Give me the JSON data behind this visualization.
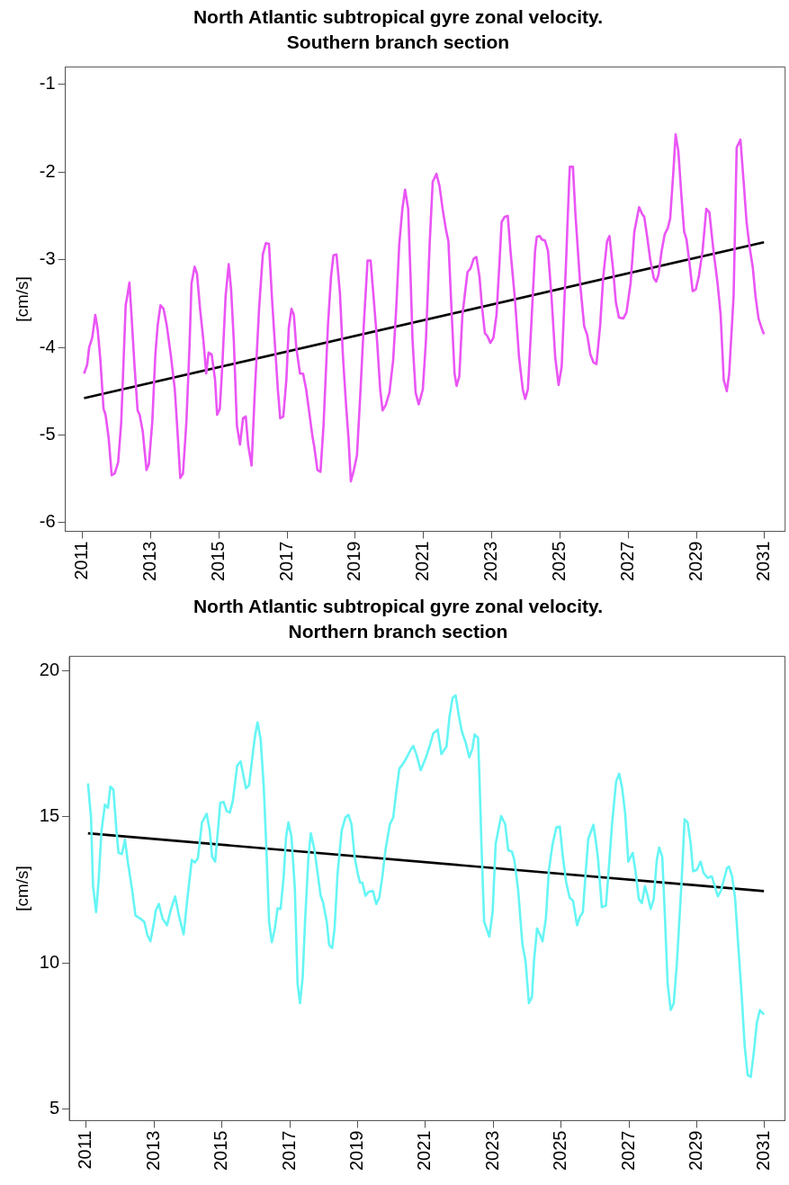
{
  "chart_data": [
    {
      "type": "line",
      "title": "North Atlantic subtropical gyre zonal velocity.",
      "subtitle": "Southern branch section",
      "ylabel": "[cm/s]",
      "xlim": [
        2010.5,
        2031.6
      ],
      "xticks": [
        2011,
        2013,
        2015,
        2017,
        2019,
        2021,
        2023,
        2025,
        2027,
        2029,
        2031
      ],
      "ylim": [
        -6.1,
        -0.8
      ],
      "yticks": [
        -6,
        -5,
        -4,
        -3,
        -2,
        -1
      ],
      "grid": false,
      "legend": false,
      "marker": "none",
      "line_style": "solid",
      "series": [
        {
          "color": "#ea55f5",
          "x": [
            2011.05,
            2011.14,
            2011.2,
            2011.29,
            2011.38,
            2011.45,
            2011.53,
            2011.62,
            2011.68,
            2011.77,
            2011.86,
            2011.95,
            2012.05,
            2012.14,
            2012.27,
            2012.32,
            2012.38,
            2012.44,
            2012.53,
            2012.62,
            2012.68,
            2012.77,
            2012.88,
            2012.95,
            2013.05,
            2013.14,
            2013.21,
            2013.29,
            2013.38,
            2013.47,
            2013.59,
            2013.71,
            2013.8,
            2013.87,
            2013.95,
            2014.05,
            2014.14,
            2014.2,
            2014.29,
            2014.36,
            2014.45,
            2014.55,
            2014.63,
            2014.7,
            2014.79,
            2014.89,
            2014.95,
            2015.03,
            2015.11,
            2015.2,
            2015.29,
            2015.36,
            2015.44,
            2015.53,
            2015.62,
            2015.71,
            2015.79,
            2015.86,
            2015.96,
            2016.05,
            2016.18,
            2016.29,
            2016.38,
            2016.47,
            2016.56,
            2016.65,
            2016.73,
            2016.8,
            2016.89,
            2016.98,
            2017.05,
            2017.13,
            2017.2,
            2017.27,
            2017.38,
            2017.47,
            2017.56,
            2017.65,
            2017.75,
            2017.8,
            2017.89,
            2017.98,
            2018.07,
            2018.2,
            2018.29,
            2018.36,
            2018.45,
            2018.55,
            2018.64,
            2018.73,
            2018.8,
            2018.87,
            2018.96,
            2019.05,
            2019.14,
            2019.25,
            2019.36,
            2019.45,
            2019.55,
            2019.64,
            2019.73,
            2019.8,
            2019.89,
            2020.0,
            2020.11,
            2020.2,
            2020.29,
            2020.38,
            2020.46,
            2020.55,
            2020.62,
            2020.68,
            2020.77,
            2020.86,
            2020.98,
            2021.07,
            2021.18,
            2021.27,
            2021.38,
            2021.47,
            2021.56,
            2021.65,
            2021.73,
            2021.82,
            2021.91,
            2021.97,
            2022.05,
            2022.14,
            2022.29,
            2022.38,
            2022.47,
            2022.55,
            2022.64,
            2022.71,
            2022.8,
            2022.87,
            2022.96,
            2023.05,
            2023.14,
            2023.23,
            2023.29,
            2023.38,
            2023.47,
            2023.55,
            2023.68,
            2023.8,
            2023.91,
            2023.98,
            2024.06,
            2024.16,
            2024.27,
            2024.32,
            2024.41,
            2024.47,
            2024.56,
            2024.65,
            2024.75,
            2024.86,
            2024.96,
            2025.05,
            2025.18,
            2025.27,
            2025.29,
            2025.38,
            2025.45,
            2025.59,
            2025.71,
            2025.8,
            2025.89,
            2025.98,
            2026.07,
            2026.18,
            2026.27,
            2026.38,
            2026.45,
            2026.55,
            2026.64,
            2026.73,
            2026.86,
            2026.95,
            2027.07,
            2027.18,
            2027.32,
            2027.41,
            2027.47,
            2027.56,
            2027.65,
            2027.75,
            2027.82,
            2027.89,
            2027.98,
            2028.07,
            2028.16,
            2028.23,
            2028.32,
            2028.39,
            2028.47,
            2028.56,
            2028.64,
            2028.71,
            2028.8,
            2028.89,
            2028.98,
            2029.07,
            2029.18,
            2029.29,
            2029.38,
            2029.5,
            2029.62,
            2029.71,
            2029.8,
            2029.89,
            2029.96,
            2030.09,
            2030.18,
            2030.29,
            2030.38,
            2030.47,
            2030.56,
            2030.65,
            2030.73,
            2030.82,
            2030.91,
            2030.98
          ],
          "values": [
            -4.3,
            -4.2,
            -4.0,
            -3.89,
            -3.63,
            -3.8,
            -4.15,
            -4.7,
            -4.77,
            -5.03,
            -5.46,
            -5.44,
            -5.31,
            -4.85,
            -3.52,
            -3.41,
            -3.26,
            -3.63,
            -4.22,
            -4.72,
            -4.77,
            -4.96,
            -5.4,
            -5.33,
            -4.85,
            -4.08,
            -3.74,
            -3.52,
            -3.56,
            -3.74,
            -4.08,
            -4.48,
            -5.03,
            -5.49,
            -5.44,
            -4.85,
            -4.0,
            -3.27,
            -3.08,
            -3.16,
            -3.56,
            -3.93,
            -4.3,
            -4.06,
            -4.08,
            -4.37,
            -4.77,
            -4.7,
            -4.15,
            -3.41,
            -3.05,
            -3.34,
            -3.93,
            -4.89,
            -5.11,
            -4.81,
            -4.79,
            -5.11,
            -5.35,
            -4.55,
            -3.56,
            -2.94,
            -2.81,
            -2.82,
            -3.45,
            -4.0,
            -4.48,
            -4.81,
            -4.79,
            -4.37,
            -3.78,
            -3.56,
            -3.63,
            -4.0,
            -4.3,
            -4.3,
            -4.48,
            -4.74,
            -5.03,
            -5.14,
            -5.4,
            -5.42,
            -4.89,
            -3.74,
            -3.19,
            -2.95,
            -2.94,
            -3.38,
            -4.11,
            -4.66,
            -5.03,
            -5.53,
            -5.4,
            -5.23,
            -4.59,
            -3.74,
            -3.01,
            -3.01,
            -3.49,
            -3.93,
            -4.48,
            -4.72,
            -4.66,
            -4.52,
            -4.15,
            -3.56,
            -2.82,
            -2.42,
            -2.2,
            -2.42,
            -3.19,
            -3.93,
            -4.52,
            -4.65,
            -4.48,
            -3.93,
            -2.82,
            -2.11,
            -2.02,
            -2.16,
            -2.42,
            -2.64,
            -2.79,
            -3.56,
            -4.3,
            -4.44,
            -4.33,
            -3.63,
            -3.14,
            -3.1,
            -2.99,
            -2.97,
            -3.19,
            -3.52,
            -3.84,
            -3.87,
            -3.95,
            -3.89,
            -3.63,
            -3.01,
            -2.57,
            -2.51,
            -2.5,
            -2.9,
            -3.45,
            -4.11,
            -4.48,
            -4.59,
            -4.48,
            -3.74,
            -2.9,
            -2.74,
            -2.73,
            -2.77,
            -2.78,
            -2.9,
            -3.41,
            -4.11,
            -4.43,
            -4.22,
            -3.01,
            -2.09,
            -1.94,
            -1.94,
            -2.46,
            -3.27,
            -3.76,
            -3.86,
            -4.08,
            -4.17,
            -4.19,
            -3.74,
            -3.19,
            -2.79,
            -2.73,
            -3.08,
            -3.49,
            -3.66,
            -3.67,
            -3.6,
            -3.27,
            -2.68,
            -2.4,
            -2.48,
            -2.51,
            -2.75,
            -3.01,
            -3.21,
            -3.25,
            -3.17,
            -2.9,
            -2.71,
            -2.64,
            -2.53,
            -2.02,
            -1.57,
            -1.76,
            -2.27,
            -2.68,
            -2.77,
            -3.05,
            -3.36,
            -3.34,
            -3.19,
            -2.9,
            -2.42,
            -2.46,
            -2.9,
            -3.27,
            -3.63,
            -4.37,
            -4.5,
            -4.3,
            -3.41,
            -1.72,
            -1.63,
            -2.09,
            -2.57,
            -2.86,
            -3.08,
            -3.41,
            -3.67,
            -3.78,
            -3.85
          ]
        },
        {
          "color": "#000000",
          "x": [
            2011.05,
            2030.98
          ],
          "values": [
            -4.58,
            -2.8
          ]
        }
      ]
    },
    {
      "type": "line",
      "title": "North Atlantic subtropical gyre zonal velocity.",
      "subtitle": "Northern branch section",
      "ylabel": "[cm/s]",
      "xlim": [
        2010.5,
        2031.6
      ],
      "xticks": [
        2011,
        2013,
        2015,
        2017,
        2019,
        2021,
        2023,
        2025,
        2027,
        2029,
        2031
      ],
      "ylim": [
        4.6,
        20.5
      ],
      "yticks": [
        5,
        10,
        15,
        20
      ],
      "grid": false,
      "legend": false,
      "marker": "none",
      "line_style": "solid",
      "series": [
        {
          "color": "#66f5f5",
          "x": [
            2011.05,
            2011.14,
            2011.2,
            2011.29,
            2011.36,
            2011.45,
            2011.55,
            2011.64,
            2011.71,
            2011.8,
            2011.89,
            2011.95,
            2012.05,
            2012.14,
            2012.23,
            2012.35,
            2012.45,
            2012.59,
            2012.71,
            2012.8,
            2012.89,
            2012.98,
            2013.05,
            2013.14,
            2013.25,
            2013.38,
            2013.5,
            2013.62,
            2013.73,
            2013.87,
            2013.98,
            2014.11,
            2014.2,
            2014.29,
            2014.41,
            2014.55,
            2014.64,
            2014.71,
            2014.8,
            2014.89,
            2014.95,
            2015.05,
            2015.14,
            2015.23,
            2015.32,
            2015.45,
            2015.55,
            2015.64,
            2015.71,
            2015.8,
            2015.89,
            2015.98,
            2016.05,
            2016.14,
            2016.23,
            2016.32,
            2016.39,
            2016.47,
            2016.56,
            2016.64,
            2016.73,
            2016.82,
            2016.89,
            2016.96,
            2017.05,
            2017.15,
            2017.23,
            2017.3,
            2017.38,
            2017.45,
            2017.55,
            2017.62,
            2017.73,
            2017.82,
            2017.91,
            2017.98,
            2018.09,
            2018.16,
            2018.25,
            2018.32,
            2018.41,
            2018.53,
            2018.64,
            2018.73,
            2018.82,
            2018.91,
            2019.0,
            2019.07,
            2019.14,
            2019.23,
            2019.32,
            2019.45,
            2019.55,
            2019.64,
            2019.73,
            2019.82,
            2019.95,
            2020.05,
            2020.14,
            2020.23,
            2020.32,
            2020.45,
            2020.55,
            2020.64,
            2020.73,
            2020.86,
            2021.0,
            2021.14,
            2021.23,
            2021.36,
            2021.47,
            2021.62,
            2021.71,
            2021.8,
            2021.89,
            2021.98,
            2022.07,
            2022.2,
            2022.29,
            2022.38,
            2022.45,
            2022.55,
            2022.59,
            2022.65,
            2022.73,
            2022.8,
            2022.88,
            2022.98,
            2023.07,
            2023.23,
            2023.35,
            2023.44,
            2023.55,
            2023.62,
            2023.73,
            2023.86,
            2023.95,
            2024.05,
            2024.14,
            2024.2,
            2024.29,
            2024.38,
            2024.45,
            2024.55,
            2024.64,
            2024.75,
            2024.86,
            2024.96,
            2025.05,
            2025.15,
            2025.25,
            2025.35,
            2025.47,
            2025.55,
            2025.64,
            2025.73,
            2025.8,
            2025.95,
            2026.02,
            2026.09,
            2026.2,
            2026.32,
            2026.41,
            2026.5,
            2026.62,
            2026.71,
            2026.8,
            2026.89,
            2026.98,
            2027.11,
            2027.2,
            2027.29,
            2027.38,
            2027.47,
            2027.55,
            2027.64,
            2027.73,
            2027.82,
            2027.89,
            2027.98,
            2028.05,
            2028.14,
            2028.23,
            2028.32,
            2028.41,
            2028.55,
            2028.64,
            2028.73,
            2028.82,
            2028.89,
            2029.0,
            2029.11,
            2029.2,
            2029.32,
            2029.44,
            2029.53,
            2029.62,
            2029.71,
            2029.8,
            2029.89,
            2029.95,
            2030.04,
            2030.13,
            2030.22,
            2030.32,
            2030.41,
            2030.5,
            2030.59,
            2030.68,
            2030.77,
            2030.86,
            2030.98
          ],
          "values": [
            16.15,
            14.98,
            12.63,
            11.74,
            12.75,
            14.53,
            15.42,
            15.31,
            16.04,
            15.93,
            14.53,
            13.77,
            13.73,
            14.22,
            13.42,
            12.52,
            11.63,
            11.52,
            11.41,
            10.96,
            10.74,
            11.29,
            11.8,
            12.02,
            11.52,
            11.29,
            11.85,
            12.28,
            11.63,
            10.98,
            12.19,
            13.53,
            13.44,
            13.58,
            14.81,
            15.11,
            14.53,
            13.64,
            13.47,
            14.64,
            15.48,
            15.51,
            15.2,
            15.15,
            15.54,
            16.76,
            16.9,
            16.37,
            15.98,
            16.09,
            16.99,
            17.82,
            18.24,
            17.66,
            16.09,
            13.64,
            11.41,
            10.71,
            11.18,
            11.87,
            11.85,
            12.97,
            14.31,
            14.81,
            14.31,
            12.52,
            9.29,
            8.62,
            9.51,
            11.41,
            13.64,
            14.44,
            13.86,
            13.08,
            12.3,
            12.08,
            11.41,
            10.62,
            10.51,
            11.18,
            13.08,
            14.53,
            14.98,
            15.07,
            14.75,
            13.64,
            13.08,
            12.75,
            12.75,
            12.3,
            12.43,
            12.47,
            12.02,
            12.24,
            12.97,
            13.86,
            14.75,
            14.98,
            15.87,
            16.65,
            16.79,
            17.04,
            17.27,
            17.43,
            17.15,
            16.6,
            16.99,
            17.49,
            17.86,
            17.99,
            17.15,
            17.41,
            18.44,
            19.08,
            19.16,
            18.49,
            17.94,
            17.49,
            17.04,
            17.32,
            17.82,
            17.71,
            16.43,
            14.08,
            11.41,
            11.18,
            10.9,
            11.74,
            14.08,
            15.03,
            14.75,
            13.86,
            13.81,
            13.53,
            12.52,
            10.62,
            10.07,
            8.62,
            8.84,
            10.07,
            11.18,
            10.96,
            10.74,
            11.52,
            13.19,
            14.08,
            14.64,
            14.67,
            13.64,
            12.75,
            12.24,
            12.13,
            11.29,
            11.57,
            11.74,
            13.19,
            14.25,
            14.73,
            14.2,
            13.53,
            11.91,
            11.96,
            13.3,
            14.75,
            16.21,
            16.48,
            15.98,
            15.09,
            13.47,
            13.77,
            13.08,
            12.19,
            12.05,
            12.63,
            12.3,
            11.85,
            12.19,
            13.53,
            13.95,
            13.64,
            11.85,
            9.29,
            8.39,
            8.62,
            9.96,
            12.75,
            14.92,
            14.81,
            14.08,
            13.14,
            13.19,
            13.47,
            13.08,
            12.91,
            12.97,
            12.63,
            12.28,
            12.47,
            12.86,
            13.25,
            13.3,
            12.97,
            12.19,
            10.62,
            8.95,
            7.17,
            6.16,
            6.1,
            6.94,
            7.95,
            8.39,
            8.23
          ]
        },
        {
          "color": "#000000",
          "x": [
            2011.05,
            2030.98
          ],
          "values": [
            14.44,
            12.46
          ]
        }
      ]
    }
  ]
}
